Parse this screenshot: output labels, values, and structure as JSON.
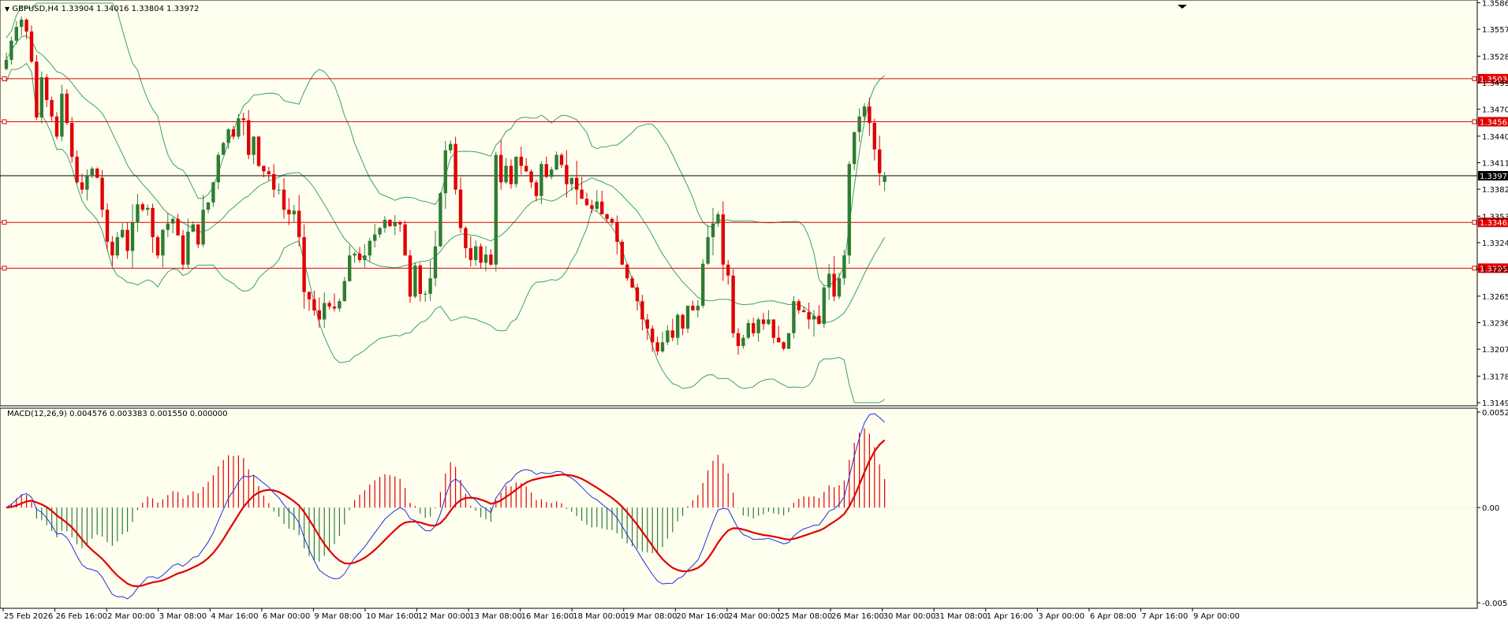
{
  "symbol_header": {
    "arrow_icon": "triangle-down-icon",
    "text": "GBPUSD,H4  1.33904 1.34016 1.33804 1.33972"
  },
  "macd_header": {
    "text": "MACD(12,26,9) 0.004576 0.003383 0.001550 0.000000"
  },
  "colors": {
    "background": "#fffff0",
    "bull_candle": "#2e7d32",
    "bear_candle": "#e00000",
    "bollinger": "#3aa06a",
    "level_line": "#e00000",
    "price_line": "#000000",
    "macd_line": "#1f2fe0",
    "signal_line": "#e00000"
  },
  "price_axis": {
    "ticks": [
      "1.35865",
      "1.35575",
      "1.35280",
      "1.34990",
      "1.34700",
      "1.34405",
      "1.34115",
      "1.33825",
      "1.33530",
      "1.33240",
      "1.32950",
      "1.32655",
      "1.32365",
      "1.32075",
      "1.31780",
      "1.31490"
    ]
  },
  "level_labels": [
    "1.35034",
    "1.34563",
    "1.33462",
    "1.32961"
  ],
  "current_price_label": "1.33972",
  "macd_axis": {
    "ticks": [
      "0.005215",
      "0.00",
      "-0.00516"
    ]
  },
  "time_axis": {
    "labels": [
      "25 Feb 2026",
      "26 Feb 16:00",
      "2 Mar 00:00",
      "3 Mar 08:00",
      "4 Mar 16:00",
      "6 Mar 00:00",
      "9 Mar 08:00",
      "10 Mar 16:00",
      "12 Mar 00:00",
      "13 Mar 08:00",
      "16 Mar 16:00",
      "18 Mar 00:00",
      "19 Mar 08:00",
      "20 Mar 16:00",
      "24 Mar 00:00",
      "25 Mar 08:00",
      "26 Mar 16:00",
      "30 Mar 00:00",
      "31 Mar 08:00",
      "1 Apr 16:00",
      "3 Apr 00:00",
      "6 Apr 08:00",
      "7 Apr 16:00",
      "9 Apr 00:00"
    ]
  },
  "chart_data": {
    "type": "candlestick",
    "symbol": "GBPUSD",
    "timeframe": "H4",
    "ohlc_last": {
      "open": 1.33904,
      "high": 1.34016,
      "low": 1.33804,
      "close": 1.33972
    },
    "ylim": [
      1.3149,
      1.3586
    ],
    "horizontal_levels": [
      1.35034,
      1.34563,
      1.33462,
      1.32961
    ],
    "current_price": 1.33972,
    "close": [
      1.3524,
      1.3545,
      1.356,
      1.3568,
      1.3555,
      1.3522,
      1.3461,
      1.3505,
      1.348,
      1.3462,
      1.344,
      1.3487,
      1.3455,
      1.3418,
      1.339,
      1.3382,
      1.3398,
      1.3405,
      1.3395,
      1.336,
      1.3325,
      1.331,
      1.333,
      1.3338,
      1.3315,
      1.3346,
      1.3366,
      1.336,
      1.3362,
      1.333,
      1.331,
      1.3338,
      1.3345,
      1.335,
      1.3332,
      1.33,
      1.3336,
      1.3344,
      1.3322,
      1.336,
      1.3368,
      1.339,
      1.342,
      1.3433,
      1.3448,
      1.344,
      1.346,
      1.3458,
      1.342,
      1.344,
      1.3408,
      1.3402,
      1.3399,
      1.3382,
      1.3382,
      1.336,
      1.3355,
      1.3359,
      1.333,
      1.327,
      1.3262,
      1.325,
      1.324,
      1.3258,
      1.3254,
      1.3252,
      1.326,
      1.3282,
      1.331,
      1.3312,
      1.3305,
      1.331,
      1.3326,
      1.3333,
      1.334,
      1.3349,
      1.3342,
      1.3346,
      1.3344,
      1.331,
      1.3265,
      1.3299,
      1.3268,
      1.3268,
      1.3285,
      1.332,
      1.3378,
      1.3425,
      1.3432,
      1.3382,
      1.334,
      1.3318,
      1.3305,
      1.332,
      1.3302,
      1.3311,
      1.33,
      1.342,
      1.339,
      1.3408,
      1.3388,
      1.3418,
      1.3408,
      1.3402,
      1.339,
      1.3375,
      1.341,
      1.3396,
      1.3404,
      1.342,
      1.3409,
      1.3388,
      1.3395,
      1.3382,
      1.3372,
      1.3365,
      1.3361,
      1.3369,
      1.3355,
      1.335,
      1.3346,
      1.3325,
      1.33,
      1.3285,
      1.3275,
      1.326,
      1.324,
      1.323,
      1.3215,
      1.3205,
      1.3215,
      1.3228,
      1.322,
      1.3245,
      1.323,
      1.3255,
      1.325,
      1.3255,
      1.3301,
      1.333,
      1.3345,
      1.3355,
      1.33,
      1.3288,
      1.3225,
      1.3211,
      1.322,
      1.3236,
      1.3225,
      1.324,
      1.3235,
      1.324,
      1.322,
      1.3215,
      1.3208,
      1.3225,
      1.326,
      1.325,
      1.3248,
      1.324,
      1.3244,
      1.3235,
      1.3275,
      1.329,
      1.3265,
      1.3285,
      1.331,
      1.341,
      1.3445,
      1.3462,
      1.3473,
      1.3455,
      1.3426,
      1.34,
      1.3397
    ],
    "macd_ylim": [
      -0.00516,
      0.005215
    ],
    "macd": 0.004576,
    "signal": 0.003383,
    "osma": 0.00155
  }
}
